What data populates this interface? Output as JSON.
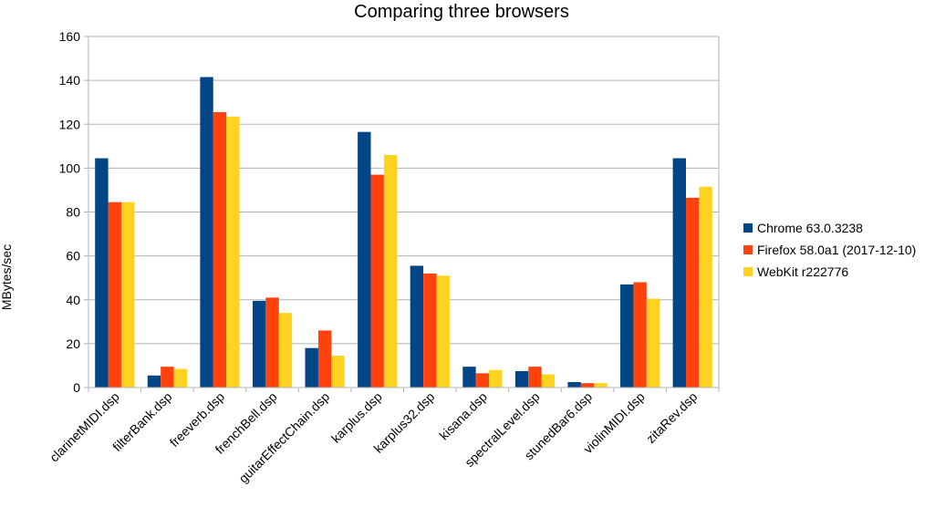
{
  "chart_data": {
    "type": "bar",
    "title": "Comparing three browsers",
    "ylabel": "MBytes/sec",
    "xlabel": "",
    "ylim": [
      0,
      160
    ],
    "yticks": [
      0,
      20,
      40,
      60,
      80,
      100,
      120,
      140,
      160
    ],
    "grid": true,
    "legend_position": "right",
    "categories": [
      "clarinetMIDI.dsp",
      "filterBank.dsp",
      "freeverb.dsp",
      "frenchBell.dsp",
      "guitarEffectChain.dsp",
      "karplus.dsp",
      "karplus32.dsp",
      "kisana.dsp",
      "spectralLevel.dsp",
      "stunedBar6.dsp",
      "violinMIDI.dsp",
      "zitaRev.dsp"
    ],
    "series": [
      {
        "name": "Chrome 63.0.3238",
        "color": "#004586",
        "values": [
          104.5,
          5.5,
          141.5,
          39.5,
          18,
          116.5,
          55.5,
          9.5,
          7.5,
          2.5,
          47,
          104.5
        ]
      },
      {
        "name": "Firefox 58.0a1 (2017-12-10)",
        "color": "#ff420e",
        "values": [
          84.5,
          9.5,
          125.5,
          41,
          26,
          97,
          52,
          6.5,
          9.5,
          2,
          48,
          86.5
        ]
      },
      {
        "name": "WebKit r222776",
        "color": "#ffd320",
        "values": [
          84.5,
          8.5,
          123.5,
          34,
          14.5,
          106,
          51,
          8,
          6,
          2,
          40.5,
          91.5
        ]
      }
    ]
  }
}
